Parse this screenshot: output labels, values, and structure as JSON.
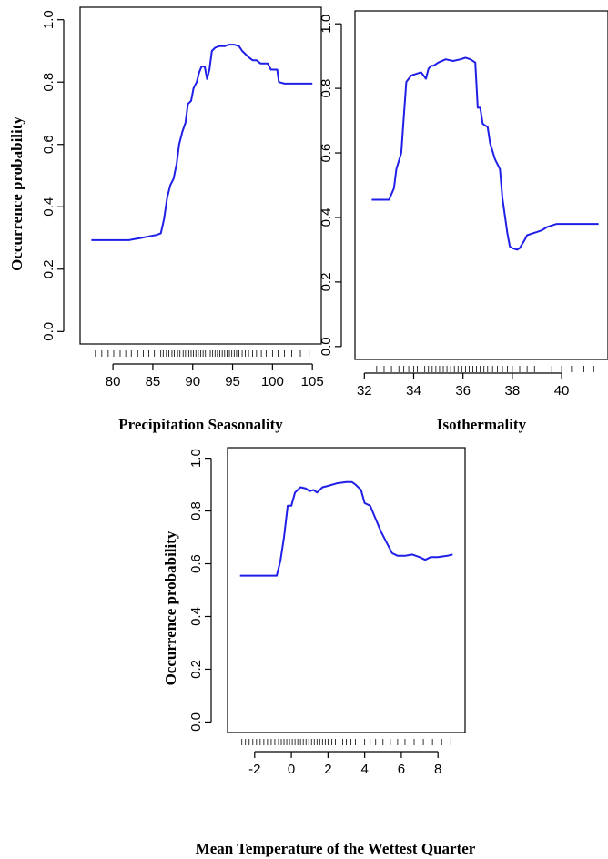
{
  "colors": {
    "curve": "#1f1fe8",
    "axis": "#000000",
    "background": "#ffffff"
  },
  "chart_data": [
    {
      "type": "line",
      "xlabel": "Precipitation Seasonality",
      "ylabel": "Occurrence probability",
      "xlim": [
        77,
        105
      ],
      "ylim": [
        0,
        1
      ],
      "xticks": [
        80,
        85,
        90,
        95,
        100,
        105
      ],
      "yticks": [
        0.0,
        0.2,
        0.4,
        0.6,
        0.8,
        1.0
      ],
      "ytick_labels": [
        "0.0",
        "0.2",
        "0.4",
        "0.6",
        "0.8",
        "1.0"
      ],
      "grid": false,
      "series": [
        {
          "x": [
            77.3,
            80,
            82,
            83.5,
            84.5,
            85.5,
            86.0,
            86.4,
            86.8,
            87.2,
            87.6,
            88.0,
            88.3,
            88.7,
            89.1,
            89.4,
            89.8,
            90.1,
            90.5,
            90.8,
            91.1,
            91.5,
            91.8,
            92.1,
            92.4,
            92.8,
            93.3,
            94.0,
            94.5,
            95.2,
            95.8,
            96.2,
            96.6,
            97.0,
            97.5,
            98.0,
            98.5,
            99.0,
            99.4,
            99.8,
            100.3,
            100.6,
            100.8,
            101.5,
            103,
            105
          ],
          "y": [
            0.293,
            0.293,
            0.293,
            0.3,
            0.305,
            0.31,
            0.315,
            0.36,
            0.43,
            0.47,
            0.49,
            0.54,
            0.6,
            0.64,
            0.67,
            0.73,
            0.74,
            0.78,
            0.8,
            0.83,
            0.85,
            0.85,
            0.81,
            0.84,
            0.9,
            0.91,
            0.915,
            0.915,
            0.92,
            0.92,
            0.915,
            0.9,
            0.89,
            0.88,
            0.87,
            0.87,
            0.86,
            0.86,
            0.86,
            0.84,
            0.84,
            0.84,
            0.8,
            0.795,
            0.795,
            0.795
          ]
        }
      ],
      "rug_x": [
        77.8,
        78.6,
        79.4,
        80.1,
        80.9,
        81.6,
        82.3,
        83.1,
        83.8,
        84.5,
        85.2,
        86.0,
        86.3,
        86.7,
        87.0,
        87.4,
        87.7,
        88.1,
        88.4,
        88.8,
        89.1,
        89.5,
        89.8,
        90.1,
        90.4,
        90.7,
        91.0,
        91.3,
        91.6,
        91.9,
        92.2,
        92.5,
        92.8,
        93.1,
        93.4,
        93.7,
        94.0,
        94.3,
        94.6,
        94.9,
        95.2,
        95.5,
        95.8,
        96.2,
        96.6,
        97.0,
        97.5,
        98.0,
        98.6,
        99.2,
        100.0,
        100.7,
        101.5,
        102.4,
        103.5,
        104.6
      ]
    },
    {
      "type": "line",
      "xlabel": "Isothermality",
      "ylabel": "",
      "xlim": [
        32,
        41.5
      ],
      "ylim": [
        0,
        1
      ],
      "xticks": [
        32,
        34,
        36,
        38,
        40
      ],
      "yticks": [
        0.0,
        0.2,
        0.4,
        0.6,
        0.8,
        1.0
      ],
      "ytick_labels": [
        "0.0",
        "0.2",
        "0.4",
        "0.6",
        "0.8",
        "1.0"
      ],
      "grid": false,
      "series": [
        {
          "x": [
            32.3,
            33.0,
            33.2,
            33.3,
            33.5,
            33.6,
            33.7,
            33.8,
            33.9,
            34.1,
            34.3,
            34.5,
            34.6,
            34.7,
            34.8,
            35.0,
            35.3,
            35.6,
            35.9,
            36.1,
            36.3,
            36.5,
            36.6,
            36.7,
            36.8,
            37.0,
            37.1,
            37.3,
            37.5,
            37.6,
            37.8,
            37.9,
            38.0,
            38.2,
            38.3,
            38.5,
            38.6,
            38.8,
            39.0,
            39.2,
            39.4,
            39.6,
            39.8,
            40.0,
            40.5,
            41.5
          ],
          "y": [
            0.455,
            0.455,
            0.49,
            0.55,
            0.6,
            0.71,
            0.82,
            0.83,
            0.84,
            0.845,
            0.85,
            0.83,
            0.86,
            0.87,
            0.87,
            0.88,
            0.89,
            0.885,
            0.89,
            0.895,
            0.89,
            0.88,
            0.74,
            0.74,
            0.69,
            0.68,
            0.63,
            0.58,
            0.55,
            0.46,
            0.35,
            0.31,
            0.305,
            0.3,
            0.305,
            0.33,
            0.345,
            0.35,
            0.355,
            0.36,
            0.37,
            0.375,
            0.38,
            0.38,
            0.38,
            0.38
          ]
        }
      ],
      "rug_x": [
        32.5,
        32.8,
        33.1,
        33.4,
        33.6,
        33.8,
        34.0,
        34.15,
        34.3,
        34.45,
        34.6,
        34.75,
        34.9,
        35.05,
        35.2,
        35.35,
        35.5,
        35.65,
        35.8,
        35.95,
        36.1,
        36.25,
        36.4,
        36.55,
        36.7,
        36.85,
        37.0,
        37.2,
        37.4,
        37.6,
        37.8,
        38.0,
        38.3,
        38.6,
        38.9,
        39.2,
        39.6,
        40.0,
        40.4,
        40.9,
        41.3
      ]
    },
    {
      "type": "line",
      "xlabel": "Mean Temperature  of the Wettest Quarter",
      "ylabel": "Occurrence probability",
      "xlim": [
        -3,
        9
      ],
      "ylim": [
        0,
        1
      ],
      "xticks": [
        -2,
        0,
        2,
        4,
        6,
        8
      ],
      "yticks": [
        0.0,
        0.2,
        0.4,
        0.6,
        0.8,
        1.0
      ],
      "ytick_labels": [
        "0.0",
        "0.2",
        "0.4",
        "0.6",
        "0.8",
        "1.0"
      ],
      "grid": false,
      "series": [
        {
          "x": [
            -2.8,
            -1.8,
            -1.2,
            -0.8,
            -0.6,
            -0.4,
            -0.2,
            0.0,
            0.2,
            0.5,
            0.8,
            1.0,
            1.2,
            1.4,
            1.7,
            2.0,
            2.5,
            3.0,
            3.3,
            3.5,
            3.8,
            4.0,
            4.3,
            4.6,
            4.9,
            5.2,
            5.5,
            5.8,
            6.2,
            6.6,
            7.0,
            7.3,
            7.6,
            8.0,
            8.5,
            8.8
          ],
          "y": [
            0.555,
            0.555,
            0.555,
            0.555,
            0.61,
            0.7,
            0.82,
            0.82,
            0.87,
            0.89,
            0.885,
            0.875,
            0.88,
            0.87,
            0.89,
            0.895,
            0.905,
            0.91,
            0.91,
            0.9,
            0.88,
            0.83,
            0.82,
            0.77,
            0.72,
            0.68,
            0.64,
            0.63,
            0.63,
            0.635,
            0.625,
            0.615,
            0.625,
            0.625,
            0.63,
            0.635
          ]
        }
      ],
      "rug_x": [
        -2.7,
        -2.5,
        -2.3,
        -2.1,
        -1.9,
        -1.7,
        -1.5,
        -1.3,
        -1.1,
        -0.9,
        -0.7,
        -0.55,
        -0.4,
        -0.25,
        -0.1,
        0.05,
        0.2,
        0.35,
        0.5,
        0.65,
        0.8,
        0.95,
        1.1,
        1.25,
        1.4,
        1.55,
        1.7,
        1.85,
        2.0,
        2.2,
        2.4,
        2.6,
        2.8,
        3.0,
        3.25,
        3.5,
        3.75,
        4.0,
        4.3,
        4.6,
        5.0,
        5.4,
        5.8,
        6.2,
        6.7,
        7.2,
        7.7,
        8.2,
        8.7
      ]
    }
  ]
}
